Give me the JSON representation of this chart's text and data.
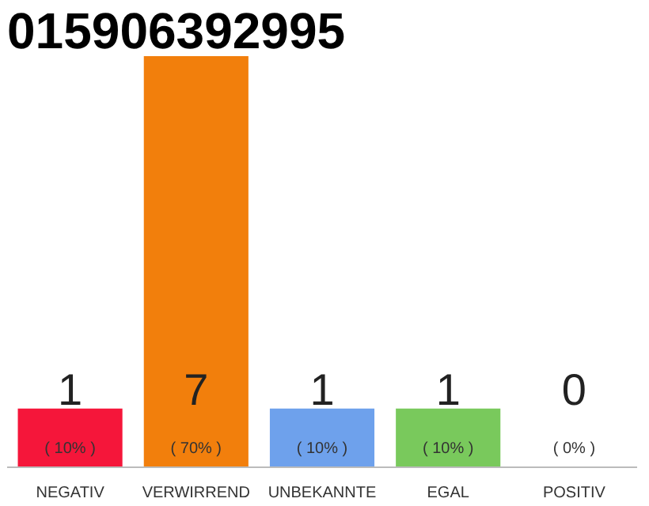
{
  "chart_data": {
    "type": "bar",
    "title": "015906392995",
    "categories": [
      "NEGATIV",
      "VERWIRREND",
      "UNBEKANNTE",
      "EGAL",
      "POSITIV"
    ],
    "series": [
      {
        "values": [
          10,
          70,
          10,
          10,
          0
        ],
        "colors": [
          "#f5163a",
          "#f27f0c",
          "#6ea1ec",
          "#79c95c",
          "#eeeeee"
        ],
        "value_labels": [
          "( 10% )",
          "( 70% )",
          "( 10% )",
          "( 10% )",
          "( 0% )"
        ]
      }
    ],
    "annotations": [
      "1",
      "7",
      "1",
      "1",
      "0"
    ],
    "grid": false
  }
}
